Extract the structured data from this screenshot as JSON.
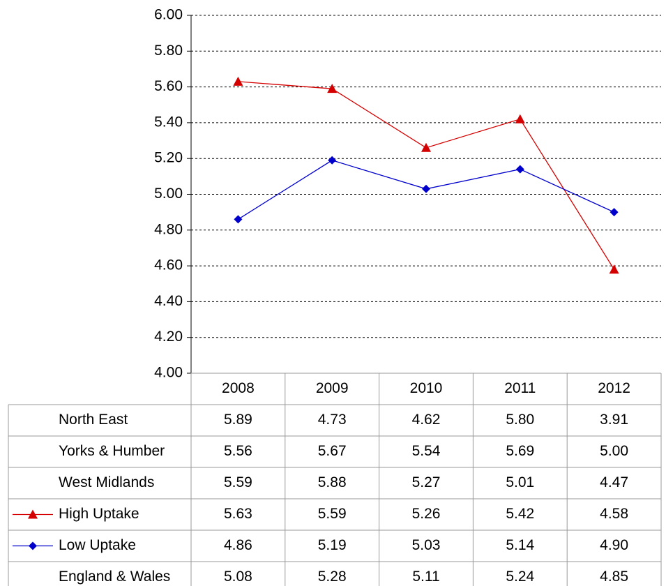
{
  "chart_data": {
    "type": "line",
    "categories": [
      "2008",
      "2009",
      "2010",
      "2011",
      "2012"
    ],
    "ylim": [
      4,
      6
    ],
    "yticks": [
      {
        "value": 4,
        "label": "4.00"
      },
      {
        "value": 4.2,
        "label": "4.20"
      },
      {
        "value": 4.4,
        "label": "4.40"
      },
      {
        "value": 4.6,
        "label": "4.60"
      },
      {
        "value": 4.8,
        "label": "4.80"
      },
      {
        "value": 5,
        "label": "5.00"
      },
      {
        "value": 5.2,
        "label": "5.20"
      },
      {
        "value": 5.4,
        "label": "5.40"
      },
      {
        "value": 5.6,
        "label": "5.60"
      },
      {
        "value": 5.8,
        "label": "5.80"
      },
      {
        "value": 6,
        "label": "6.00"
      }
    ],
    "grid": true,
    "series": [
      {
        "name": "North East",
        "values": [
          5.89,
          4.73,
          4.62,
          5.8,
          3.91
        ],
        "value_labels": [
          "5.89",
          "4.73",
          "4.62",
          "5.80",
          "3.91"
        ]
      },
      {
        "name": "Yorks & Humber",
        "values": [
          5.56,
          5.67,
          5.54,
          5.69,
          5
        ],
        "value_labels": [
          "5.56",
          "5.67",
          "5.54",
          "5.69",
          "5.00"
        ]
      },
      {
        "name": "West Midlands",
        "values": [
          5.59,
          5.88,
          5.27,
          5.01,
          4.47
        ],
        "value_labels": [
          "5.59",
          "5.88",
          "5.27",
          "5.01",
          "4.47"
        ]
      },
      {
        "name": "High Uptake",
        "color": "#d40000",
        "marker": "triangle",
        "values": [
          5.63,
          5.59,
          5.26,
          5.42,
          4.58
        ],
        "value_labels": [
          "5.63",
          "5.59",
          "5.26",
          "5.42",
          "4.58"
        ]
      },
      {
        "name": "Low Uptake",
        "color": "#0000cc",
        "marker": "diamond",
        "values": [
          4.86,
          5.19,
          5.03,
          5.14,
          4.9
        ],
        "value_labels": [
          "4.86",
          "5.19",
          "5.03",
          "5.14",
          "4.90"
        ]
      },
      {
        "name": "England & Wales",
        "values": [
          5.08,
          5.28,
          5.11,
          5.24,
          4.85
        ],
        "value_labels": [
          "5.08",
          "5.28",
          "5.11",
          "5.24",
          "4.85"
        ]
      }
    ]
  }
}
